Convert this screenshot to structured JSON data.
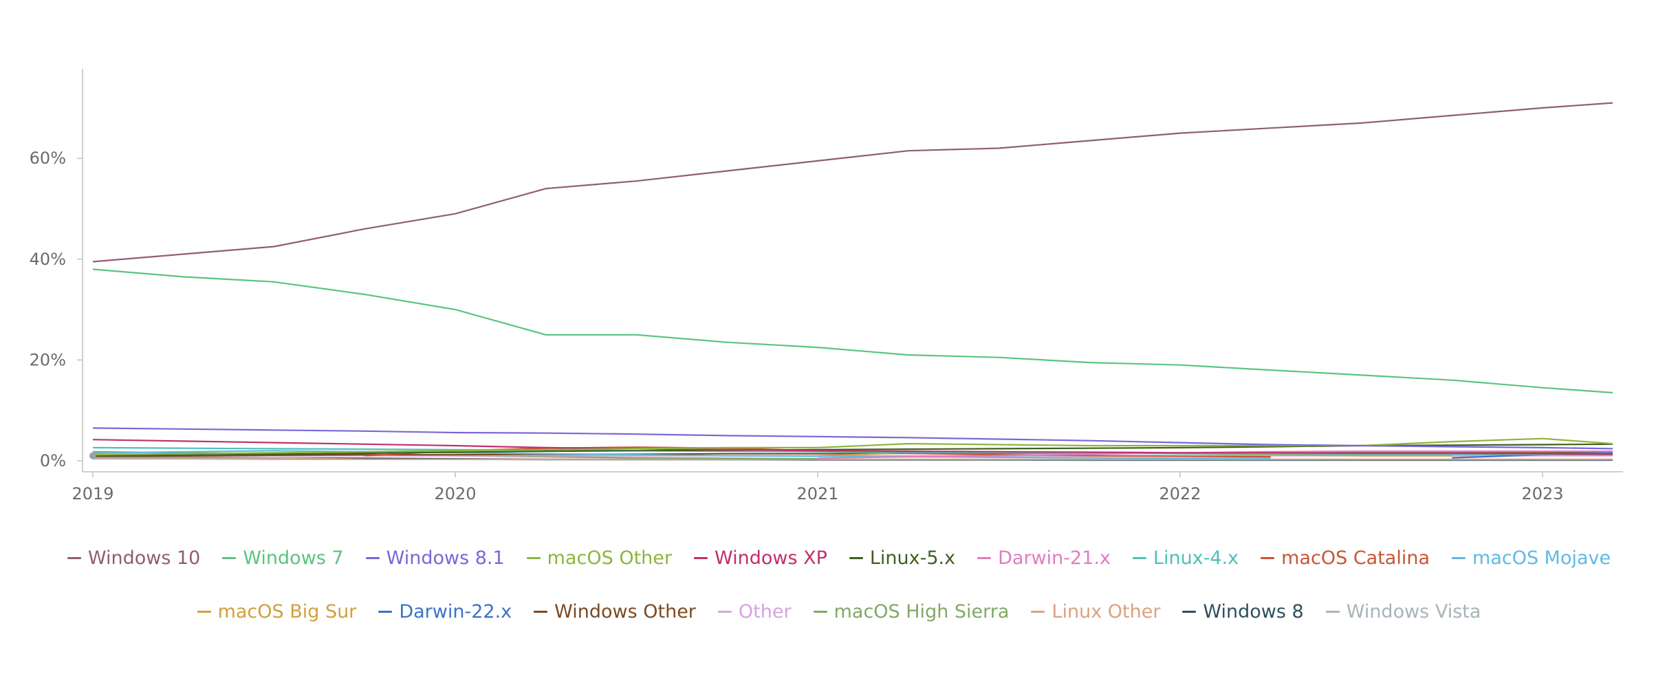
{
  "chart_data": {
    "type": "line",
    "x_axis_ticks": [
      "2019",
      "2020",
      "2021",
      "2022",
      "2023"
    ],
    "y_axis_ticks": [
      "0%",
      "20%",
      "40%",
      "60%"
    ],
    "xlim": [
      "2019-01",
      "2023-04"
    ],
    "ylim": [
      0,
      78
    ],
    "grid": false,
    "legend_position": "bottom",
    "x": [
      "2019-01",
      "2019-04",
      "2019-07",
      "2019-10",
      "2020-01",
      "2020-04",
      "2020-07",
      "2020-10",
      "2021-01",
      "2021-04",
      "2021-07",
      "2021-10",
      "2022-01",
      "2022-04",
      "2022-07",
      "2022-10",
      "2023-01",
      "2023-04"
    ],
    "series": [
      {
        "name": "Windows 10",
        "color": "#8f5f6e",
        "values": [
          39.5,
          41,
          42.5,
          46,
          49,
          54,
          55.5,
          57.5,
          59.5,
          61.5,
          62,
          63.5,
          65,
          66,
          67,
          68.5,
          70,
          71
        ]
      },
      {
        "name": "Windows 7",
        "color": "#5bc47e",
        "values": [
          38,
          36.5,
          35.5,
          33,
          30,
          25,
          25,
          23.5,
          22.5,
          21,
          20.5,
          19.5,
          19,
          18,
          17,
          16,
          14.5,
          13.5
        ]
      },
      {
        "name": "Windows 8.1",
        "color": "#7a66d9",
        "values": [
          6.5,
          6.3,
          6.1,
          5.9,
          5.6,
          5.5,
          5.3,
          5.0,
          4.8,
          4.6,
          4.3,
          4.0,
          3.6,
          3.2,
          3.0,
          2.8,
          2.6,
          2.4
        ]
      },
      {
        "name": "macOS Other",
        "color": "#8db53c",
        "values": [
          1.2,
          1.4,
          1.6,
          1.8,
          2.0,
          2.2,
          2.4,
          2.6,
          2.6,
          3.4,
          3.2,
          3.0,
          3.0,
          3.0,
          3.0,
          3.8,
          4.4,
          3.4
        ]
      },
      {
        "name": "Windows XP",
        "color": "#c0306d",
        "values": [
          4.2,
          3.9,
          3.6,
          3.3,
          3.0,
          2.6,
          2.4,
          2.2,
          2.0,
          1.9,
          1.8,
          1.7,
          1.6,
          1.6,
          1.5,
          1.5,
          1.4,
          1.3
        ]
      },
      {
        "name": "Linux-5.x",
        "color": "#3f5f1e",
        "values": [
          1.0,
          1.1,
          1.3,
          1.5,
          1.7,
          1.9,
          2.0,
          2.1,
          2.2,
          2.3,
          2.4,
          2.5,
          2.6,
          2.8,
          3.0,
          3.1,
          3.2,
          3.3
        ]
      },
      {
        "name": "Darwin-21.x",
        "color": "#e07cc1",
        "values": [
          null,
          null,
          null,
          null,
          null,
          null,
          null,
          null,
          0.5,
          0.8,
          1.0,
          1.3,
          1.6,
          1.8,
          1.9,
          1.9,
          1.9,
          1.9
        ]
      },
      {
        "name": "Linux-4.x",
        "color": "#4fc0b8",
        "values": [
          2.6,
          2.5,
          2.4,
          2.3,
          2.2,
          2.1,
          2.0,
          1.9,
          1.8,
          1.7,
          1.6,
          1.5,
          1.4,
          1.4,
          1.3,
          1.3,
          1.2,
          1.2
        ]
      },
      {
        "name": "macOS Catalina",
        "color": "#c75536",
        "values": [
          null,
          null,
          null,
          1.0,
          2.0,
          2.5,
          2.7,
          2.5,
          2.0,
          1.5,
          1.2,
          1.0,
          0.9,
          0.8,
          null,
          null,
          null,
          null
        ]
      },
      {
        "name": "macOS Mojave",
        "color": "#61b9e2",
        "values": [
          1.5,
          1.8,
          2.0,
          1.8,
          1.6,
          1.4,
          1.2,
          1.0,
          0.9,
          0.8,
          0.7,
          0.6,
          0.5,
          0.5,
          null,
          null,
          null,
          null
        ]
      },
      {
        "name": "macOS Big Sur",
        "color": "#d0a03f",
        "values": [
          null,
          null,
          null,
          null,
          null,
          null,
          null,
          null,
          1.0,
          1.6,
          1.8,
          1.6,
          1.4,
          1.2,
          1.0,
          1.0,
          null,
          null
        ]
      },
      {
        "name": "Darwin-22.x",
        "color": "#3a72c6",
        "values": [
          null,
          null,
          null,
          null,
          null,
          null,
          null,
          null,
          null,
          null,
          null,
          null,
          null,
          null,
          null,
          0.6,
          1.2,
          1.6
        ]
      },
      {
        "name": "Windows Other",
        "color": "#7a4a23",
        "values": [
          1.0,
          1.0,
          1.1,
          1.2,
          1.2,
          1.3,
          1.3,
          1.4,
          1.4,
          1.5,
          1.5,
          1.5,
          1.5,
          1.6,
          1.6,
          1.6,
          1.6,
          1.6
        ]
      },
      {
        "name": "Other",
        "color": "#d6a3df",
        "values": [
          1.0,
          1.0,
          1.0,
          1.0,
          1.0,
          1.0,
          1.0,
          1.0,
          1.0,
          1.0,
          1.0,
          1.0,
          1.0,
          1.0,
          1.0,
          1.0,
          1.0,
          1.0
        ]
      },
      {
        "name": "macOS High Sierra",
        "color": "#82a966",
        "values": [
          1.8,
          1.6,
          1.4,
          1.2,
          1.0,
          0.8,
          0.6,
          0.5,
          0.4,
          null,
          null,
          null,
          null,
          null,
          null,
          null,
          null,
          null
        ]
      },
      {
        "name": "Linux Other",
        "color": "#dba083",
        "values": [
          0.6,
          0.6,
          0.6,
          0.3,
          0.3,
          0.3,
          0.3,
          0.3,
          0.3,
          0.3,
          0.3,
          0.3,
          0.3,
          0.3,
          0.3,
          0.3,
          0.3,
          0.3
        ]
      },
      {
        "name": "Windows 8",
        "color": "#2f4f5e",
        "values": [
          0.8,
          0.7,
          0.6,
          0.5,
          0.4,
          0.3,
          0.3,
          0.3,
          0.2,
          0.2,
          0.2,
          0.2,
          0.2,
          0.2,
          0.2,
          0.2,
          0.2,
          0.2
        ]
      },
      {
        "name": "Windows Vista",
        "color": "#a8b4b8",
        "values": [
          0.4,
          0.4,
          0.3,
          0.3,
          0.3,
          0.2,
          0.2,
          0.2,
          0.2,
          0.2,
          0.2,
          0.1,
          0.1,
          0.1,
          0.1,
          0.1,
          0.1,
          0.1
        ]
      }
    ]
  }
}
